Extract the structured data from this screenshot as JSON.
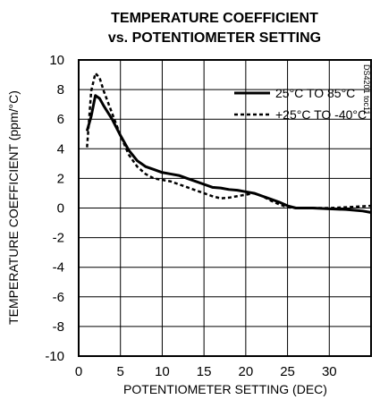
{
  "chart_data": {
    "type": "line",
    "title": [
      "TEMPERATURE COEFFICIENT",
      "vs. POTENTIOMETER SETTING"
    ],
    "xlabel": "POTENTIOMETER SETTING (DEC)",
    "ylabel": "TEMPERATURE COEFFICIENT (ppm/°C)",
    "xlim": [
      0,
      35
    ],
    "ylim": [
      -10,
      10
    ],
    "x_ticks": [
      0,
      5,
      10,
      15,
      20,
      25,
      30
    ],
    "y_ticks": [
      -10,
      -8,
      -6,
      -4,
      -2,
      0,
      2,
      4,
      6,
      8,
      10
    ],
    "grid": true,
    "legend_position": "top-right",
    "figure_id": "DS4201 toc11",
    "series": [
      {
        "name": "25°C TO 85°C",
        "style": "solid",
        "color": "#000000",
        "x": [
          1,
          1.5,
          2,
          2.5,
          3,
          4,
          5,
          6,
          7,
          8,
          9,
          10,
          11,
          12,
          13,
          14,
          15,
          16,
          17,
          18,
          19,
          20,
          21,
          22,
          23,
          24,
          25,
          26,
          28,
          30,
          32,
          34,
          35
        ],
        "y": [
          5.2,
          6.2,
          7.6,
          7.4,
          6.9,
          6.0,
          4.9,
          3.9,
          3.2,
          2.8,
          2.6,
          2.4,
          2.3,
          2.2,
          2.0,
          1.8,
          1.6,
          1.4,
          1.35,
          1.25,
          1.2,
          1.1,
          1.0,
          0.8,
          0.6,
          0.4,
          0.15,
          0.0,
          0.0,
          -0.05,
          -0.1,
          -0.2,
          -0.3
        ]
      },
      {
        "name": "+25°C TO -40°C",
        "style": "dashed",
        "color": "#000000",
        "x": [
          1,
          1.5,
          2,
          2.5,
          3,
          4,
          5,
          6,
          7,
          8,
          9,
          10,
          11,
          12,
          13,
          14,
          15,
          16,
          17,
          18,
          19,
          20,
          21,
          22,
          23,
          24,
          25,
          26,
          28,
          30,
          32,
          35
        ],
        "y": [
          4.1,
          7.9,
          9.1,
          8.8,
          7.9,
          6.4,
          4.9,
          3.6,
          2.8,
          2.3,
          2.0,
          1.9,
          1.8,
          1.6,
          1.4,
          1.2,
          1.0,
          0.8,
          0.65,
          0.7,
          0.8,
          0.9,
          1.0,
          0.8,
          0.5,
          0.25,
          0.05,
          0.0,
          0.0,
          0.0,
          0.05,
          0.15
        ]
      }
    ]
  }
}
